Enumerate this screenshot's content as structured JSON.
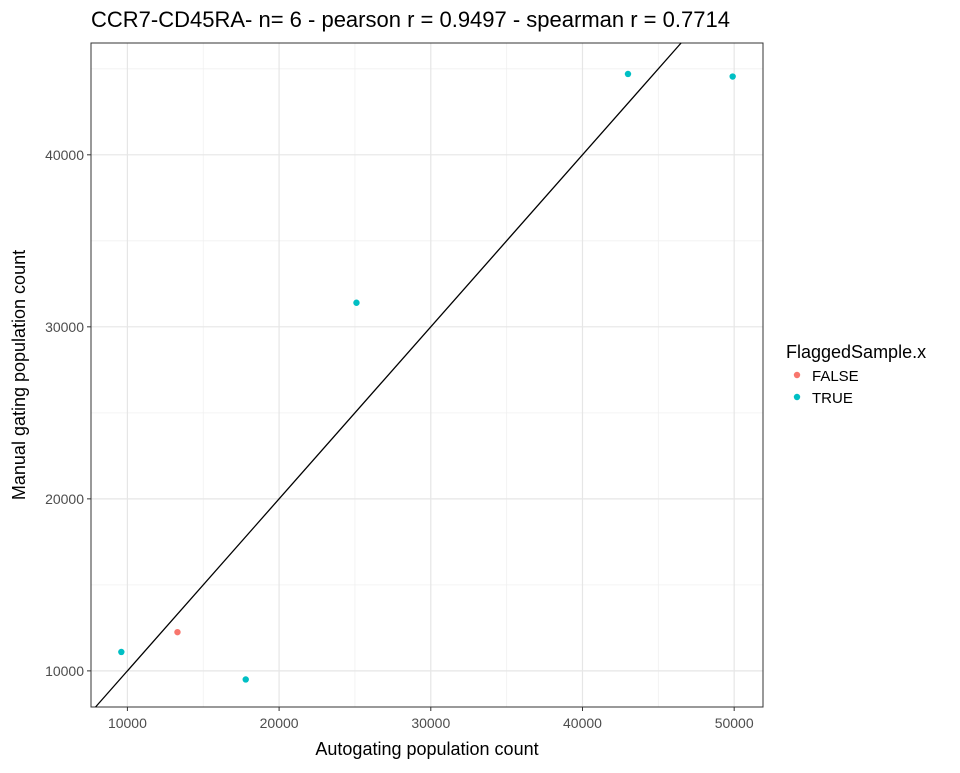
{
  "chart_data": {
    "type": "scatter",
    "title": "CCR7-CD45RA- n= 6 - pearson r = 0.9497 - spearman r = 0.7714",
    "xlabel": "Autogating population count",
    "ylabel": "Manual gating population count",
    "xlim": [
      7600,
      51900
    ],
    "ylim": [
      7900,
      46500
    ],
    "x_ticks": [
      10000,
      20000,
      30000,
      40000,
      50000
    ],
    "x_tick_labels": [
      "10000",
      "20000",
      "30000",
      "40000",
      "50000"
    ],
    "y_ticks": [
      10000,
      20000,
      30000,
      40000
    ],
    "y_tick_labels": [
      "10000",
      "20000",
      "30000",
      "40000"
    ],
    "grid": true,
    "reference_line": {
      "slope": 1,
      "intercept": 0,
      "color": "#000000"
    },
    "legend": {
      "title": "FlaggedSample.x",
      "position": "right",
      "entries": [
        {
          "label": "FALSE",
          "color": "#F8766D"
        },
        {
          "label": "TRUE",
          "color": "#00BFC4"
        }
      ]
    },
    "series": [
      {
        "name": "FALSE",
        "color": "#F8766D",
        "points": [
          {
            "x": 13300,
            "y": 12250
          }
        ]
      },
      {
        "name": "TRUE",
        "color": "#00BFC4",
        "points": [
          {
            "x": 9600,
            "y": 11100
          },
          {
            "x": 17800,
            "y": 9500
          },
          {
            "x": 25100,
            "y": 31400
          },
          {
            "x": 43000,
            "y": 44700
          },
          {
            "x": 49900,
            "y": 44550
          }
        ]
      }
    ]
  }
}
